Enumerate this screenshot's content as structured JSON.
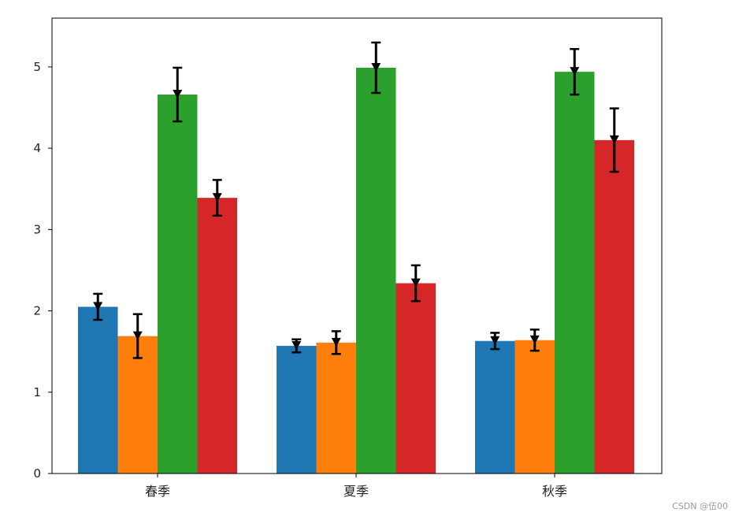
{
  "chart_data": {
    "type": "bar",
    "categories": [
      "春季",
      "夏季",
      "秋季"
    ],
    "series": [
      {
        "color": "#1f77b4",
        "values": [
          2.05,
          1.57,
          1.63
        ],
        "errors": [
          0.16,
          0.08,
          0.1
        ]
      },
      {
        "color": "#ff7f0e",
        "values": [
          1.69,
          1.61,
          1.64
        ],
        "errors": [
          0.27,
          0.14,
          0.13
        ]
      },
      {
        "color": "#2ca02c",
        "values": [
          4.66,
          4.99,
          4.94
        ],
        "errors": [
          0.33,
          0.31,
          0.28
        ]
      },
      {
        "color": "#d62728",
        "values": [
          3.39,
          2.34,
          4.1
        ],
        "errors": [
          0.22,
          0.22,
          0.39
        ]
      }
    ],
    "ylim": [
      0,
      5.6
    ],
    "yticks": [
      "0",
      "1",
      "2",
      "3",
      "4",
      "5"
    ],
    "grid": false,
    "errorbar_color": "#000000",
    "marker": "triangle-down"
  },
  "watermark": "CSDN @伍00"
}
